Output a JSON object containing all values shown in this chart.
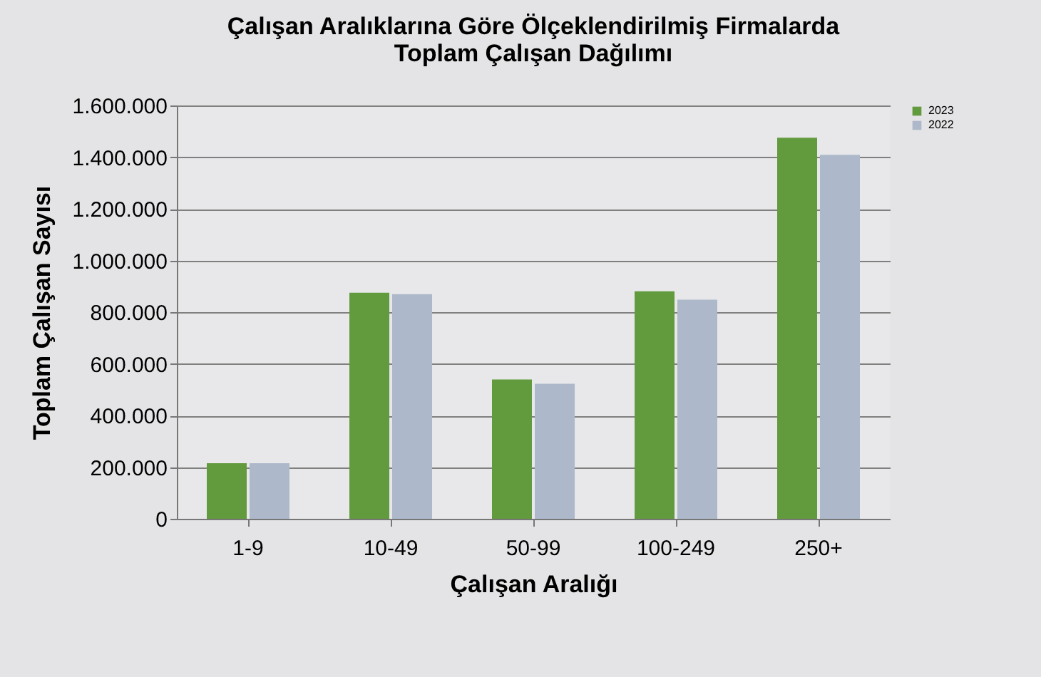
{
  "chart_data": {
    "type": "bar",
    "title": "Çalışan Aralıklarına Göre Ölçeklendirilmiş Firmalarda\nToplam Çalışan Dağılımı",
    "xlabel": "Çalışan Aralığı",
    "ylabel": "Toplam Çalışan Sayısı",
    "categories": [
      "1-9",
      "10-49",
      "50-99",
      "100-249",
      "250+"
    ],
    "series": [
      {
        "name": "2023",
        "color": "#629a3e",
        "values": [
          215000,
          875000,
          539000,
          881000,
          1475000
        ]
      },
      {
        "name": "2022",
        "color": "#adb9ca",
        "values": [
          215000,
          870000,
          523000,
          848000,
          1409000
        ]
      }
    ],
    "ylim": [
      0,
      1600000
    ],
    "yticks": [
      {
        "value": 0,
        "label": "0"
      },
      {
        "value": 200000,
        "label": "200.000"
      },
      {
        "value": 400000,
        "label": "400.000"
      },
      {
        "value": 600000,
        "label": "600.000"
      },
      {
        "value": 800000,
        "label": "800.000"
      },
      {
        "value": 1000000,
        "label": "1.000.000"
      },
      {
        "value": 1200000,
        "label": "1.200.000"
      },
      {
        "value": 1400000,
        "label": "1.400.000"
      },
      {
        "value": 1600000,
        "label": "1.600.000"
      }
    ],
    "grid": "y",
    "legend": "right"
  }
}
